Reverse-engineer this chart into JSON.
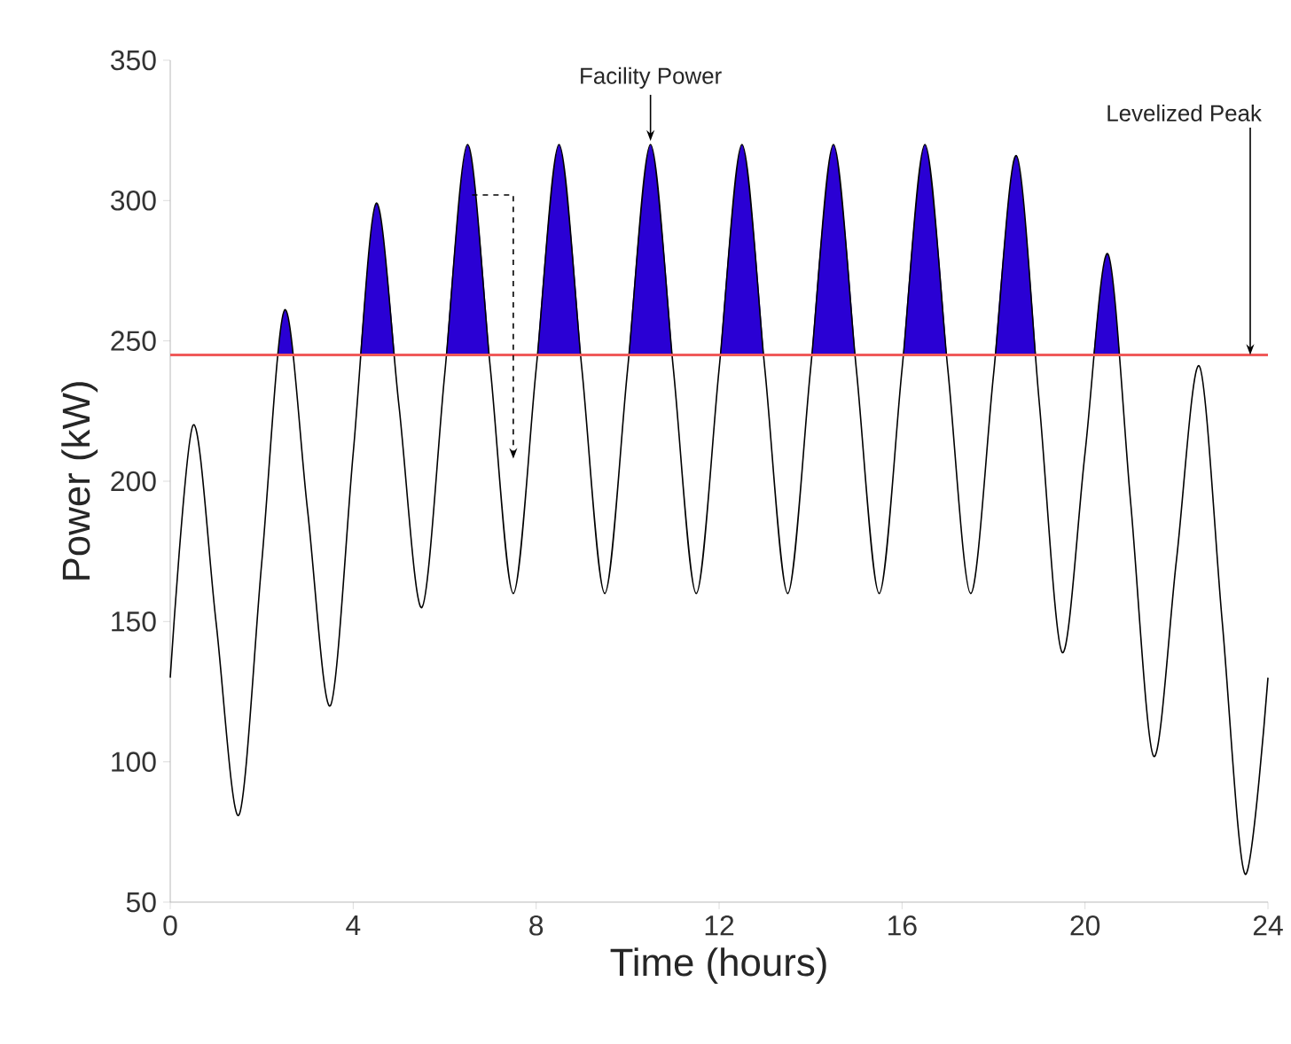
{
  "chart_data": {
    "type": "line",
    "xlabel": "Time (hours)",
    "ylabel": "Power (kW)",
    "xlim": [
      0,
      24
    ],
    "ylim": [
      50,
      350
    ],
    "xticks": [
      0,
      4,
      8,
      12,
      16,
      20,
      24
    ],
    "yticks": [
      50,
      100,
      150,
      200,
      250,
      300,
      350
    ],
    "grid": false,
    "marker": "none",
    "line_style": "solid",
    "series": [
      {
        "color": "#000000",
        "x": [
          0,
          0.5,
          1,
          1.5,
          2,
          2.5,
          3,
          3.5,
          4,
          4.5,
          5,
          5.5,
          6,
          6.5,
          7,
          7.5,
          8,
          8.5,
          9,
          9.5,
          10,
          10.5,
          11,
          11.5,
          12,
          12.5,
          13,
          13.5,
          14,
          14.5,
          15,
          15.5,
          16,
          16.5,
          17,
          17.5,
          18,
          18.5,
          19,
          19.5,
          20,
          20.5,
          21,
          21.5,
          22,
          22.5,
          23,
          23.5,
          24
        ],
        "values": [
          130,
          220,
          150,
          81,
          171,
          261,
          190,
          120,
          210,
          299,
          227,
          155,
          238,
          320,
          240,
          160,
          240,
          320,
          240,
          160,
          240,
          320,
          240,
          160,
          240,
          320,
          240,
          160,
          240,
          320,
          240,
          160,
          240,
          320,
          240,
          160,
          238,
          316,
          228,
          139,
          210,
          281,
          192,
          102,
          172,
          241,
          150,
          60,
          130
        ]
      },
      {
        "type": "area",
        "color": "#2a00d4",
        "x": [
          2,
          2.5,
          3,
          3.5,
          4,
          4.5,
          5,
          5.5,
          6,
          6.5,
          7,
          7.5,
          8,
          8.5,
          9,
          9.5,
          10,
          10.5,
          11,
          11.5,
          12,
          12.5,
          13,
          13.5,
          14,
          14.5,
          15,
          15.5,
          16,
          16.5,
          17,
          17.5,
          18,
          18.5,
          19,
          19.5,
          20,
          20.5,
          21
        ],
        "values": [
          171,
          261,
          190,
          null,
          210,
          299,
          227,
          null,
          238,
          320,
          240,
          null,
          240,
          320,
          240,
          null,
          240,
          320,
          240,
          null,
          240,
          320,
          240,
          null,
          240,
          320,
          240,
          null,
          240,
          320,
          240,
          null,
          238,
          316,
          228,
          null,
          210,
          281,
          192
        ]
      }
    ],
    "ref_lines": [
      {
        "axis": "y",
        "value": 245,
        "label": "Levelized Peak",
        "color": "#f05a5a"
      }
    ],
    "annotations": [
      {
        "text": "Facility Power",
        "x": 10.5,
        "y": 320
      }
    ]
  }
}
